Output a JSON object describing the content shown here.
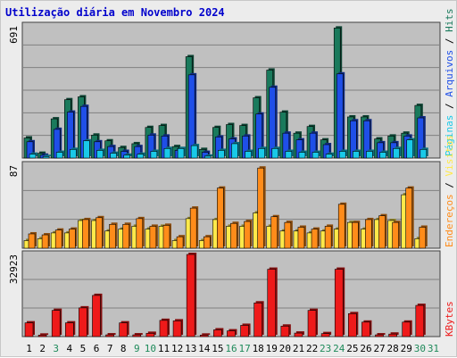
{
  "title": "Utilização diária em Novembro 2024",
  "colors": {
    "hits": "#1a7a5c",
    "arquivos": "#1f4fe8",
    "paginas": "#19c9e8",
    "visitas": "#ffe94a",
    "enderecos": "#ff8c1a",
    "kbytes": "#ee1a1a",
    "weekday": "#000000",
    "weekend": "#1e8a5a",
    "panel": "#c0c0c0",
    "grid": "#808080"
  },
  "chart_data": [
    {
      "type": "bar",
      "title": "Utilização diária em Novembro 2024",
      "categories": [
        "1",
        "2",
        "3",
        "4",
        "5",
        "6",
        "7",
        "8",
        "9",
        "10",
        "11",
        "12",
        "13",
        "14",
        "15",
        "16",
        "17",
        "18",
        "19",
        "20",
        "21",
        "22",
        "23",
        "24",
        "25",
        "26",
        "27",
        "28",
        "29",
        "30",
        "31"
      ],
      "weekend_days": [
        "3",
        "9",
        "10",
        "16",
        "17",
        "23",
        "24",
        "30",
        "31"
      ],
      "ylabel": "Hits / Arquivos / Páginas",
      "ymax_label": "691",
      "ylim": [
        0,
        691
      ],
      "series": [
        {
          "name": "Hits",
          "values": [
            105,
            25,
            205,
            305,
            320,
            120,
            90,
            55,
            75,
            160,
            170,
            60,
            530,
            45,
            160,
            175,
            170,
            315,
            460,
            240,
            130,
            165,
            95,
            680,
            215,
            215,
            100,
            115,
            130,
            275,
            0
          ]
        },
        {
          "name": "Arquivos",
          "values": [
            85,
            15,
            150,
            240,
            270,
            85,
            60,
            35,
            60,
            120,
            115,
            40,
            435,
            30,
            110,
            100,
            115,
            230,
            370,
            130,
            95,
            130,
            70,
            440,
            195,
            195,
            80,
            80,
            115,
            210,
            0
          ]
        },
        {
          "name": "Páginas",
          "values": [
            20,
            8,
            30,
            45,
            90,
            40,
            25,
            15,
            20,
            35,
            50,
            50,
            65,
            10,
            40,
            75,
            35,
            50,
            50,
            35,
            30,
            30,
            20,
            35,
            35,
            35,
            30,
            50,
            95,
            45,
            0
          ]
        }
      ]
    },
    {
      "type": "bar",
      "categories": [
        "1",
        "2",
        "3",
        "4",
        "5",
        "6",
        "7",
        "8",
        "9",
        "10",
        "11",
        "12",
        "13",
        "14",
        "15",
        "16",
        "17",
        "18",
        "19",
        "20",
        "21",
        "22",
        "23",
        "24",
        "25",
        "26",
        "27",
        "28",
        "29",
        "30",
        "31"
      ],
      "ylabel": "Endereços / Visitas",
      "ymax_label": "87",
      "ylim": [
        0,
        87
      ],
      "series": [
        {
          "name": "Visitas",
          "values": [
            8,
            10,
            16,
            16,
            29,
            29,
            18,
            20,
            23,
            20,
            23,
            8,
            31,
            8,
            30,
            23,
            23,
            37,
            23,
            18,
            18,
            16,
            18,
            20,
            27,
            20,
            30,
            29,
            56,
            10,
            0
          ]
        },
        {
          "name": "Endereços",
          "values": [
            15,
            14,
            19,
            20,
            30,
            32,
            25,
            25,
            31,
            23,
            24,
            12,
            42,
            12,
            63,
            26,
            28,
            84,
            33,
            27,
            22,
            20,
            23,
            46,
            27,
            30,
            34,
            27,
            63,
            22,
            0
          ]
        }
      ]
    },
    {
      "type": "bar",
      "categories": [
        "1",
        "2",
        "3",
        "4",
        "5",
        "6",
        "7",
        "8",
        "9",
        "10",
        "11",
        "12",
        "13",
        "14",
        "15",
        "16",
        "17",
        "18",
        "19",
        "20",
        "21",
        "22",
        "23",
        "24",
        "25",
        "26",
        "27",
        "28",
        "29",
        "30",
        "31"
      ],
      "ylabel": "KBytes",
      "ymax_label": "32923",
      "ylim": [
        0,
        32923
      ],
      "series": [
        {
          "name": "KBytes",
          "values": [
            5500,
            600,
            10500,
            5500,
            11500,
            16500,
            700,
            5500,
            700,
            1300,
            6500,
            6300,
            32923,
            600,
            2700,
            2300,
            4500,
            13500,
            27000,
            4200,
            1400,
            10500,
            1200,
            27000,
            9200,
            5800,
            700,
            1000,
            5800,
            12500,
            0
          ]
        }
      ]
    }
  ]
}
